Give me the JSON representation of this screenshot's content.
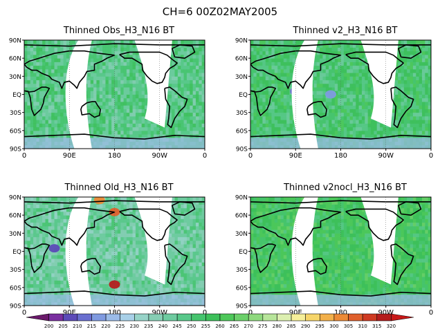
{
  "figure": {
    "title": "CH=6    00Z02MAY2005"
  },
  "chart_data": [
    {
      "type": "heatmap",
      "title": "Thinned Obs_H3_N16 BT",
      "x_ticks": [
        "0",
        "90E",
        "180",
        "90W",
        "0"
      ],
      "y_ticks": [
        "90N",
        "60N",
        "30N",
        "EQ",
        "30S",
        "60S",
        "90S"
      ],
      "xlim": [
        0,
        360
      ],
      "ylim": [
        -90,
        90
      ],
      "swath_gap_lon": [
        80,
        200
      ],
      "dominant_value": 250,
      "anomalies": []
    },
    {
      "type": "heatmap",
      "title": "Thinned v2_H3_N16 BT",
      "x_ticks": [
        "0",
        "90E",
        "180",
        "90W",
        "0"
      ],
      "y_ticks": [
        "90N",
        "60N",
        "30N",
        "EQ",
        "30S",
        "60S",
        "90S"
      ],
      "xlim": [
        0,
        360
      ],
      "ylim": [
        -90,
        90
      ],
      "swath_gap_lon": [
        80,
        200
      ],
      "dominant_value": 255,
      "anomalies": [
        {
          "lon": 90,
          "lat": 5,
          "value": 215
        },
        {
          "lon": 160,
          "lat": 0,
          "value": 220
        }
      ]
    },
    {
      "type": "heatmap",
      "title": "Thinned Old_H3_N16 BT",
      "x_ticks": [
        "0",
        "90E",
        "180",
        "90W",
        "0"
      ],
      "y_ticks": [
        "90N",
        "60N",
        "30N",
        "EQ",
        "30S",
        "60S",
        "90S"
      ],
      "xlim": [
        0,
        360
      ],
      "ylim": [
        -90,
        90
      ],
      "swath_gap_lon": [
        80,
        200
      ],
      "dominant_value": 245,
      "anomalies": [
        {
          "lon": 60,
          "lat": 5,
          "value": 210
        },
        {
          "lon": 180,
          "lat": -55,
          "value": 320
        },
        {
          "lon": 180,
          "lat": 65,
          "value": 310
        },
        {
          "lon": 150,
          "lat": 85,
          "value": 305
        }
      ]
    },
    {
      "type": "heatmap",
      "title": "Thinned v2nocl_H3_N16 BT",
      "x_ticks": [
        "0",
        "90E",
        "180",
        "90W",
        "0"
      ],
      "y_ticks": [
        "90N",
        "60N",
        "30N",
        "EQ",
        "30S",
        "60S",
        "90S"
      ],
      "xlim": [
        0,
        360
      ],
      "ylim": [
        -90,
        90
      ],
      "swath_gap_lon": [
        80,
        200
      ],
      "dominant_value": 260,
      "anomalies": []
    }
  ],
  "colorbar": {
    "labels": [
      "200",
      "205",
      "210",
      "215",
      "220",
      "225",
      "230",
      "235",
      "240",
      "245",
      "250",
      "255",
      "260",
      "265",
      "270",
      "275",
      "280",
      "285",
      "290",
      "295",
      "300",
      "305",
      "310",
      "315",
      "320"
    ],
    "colors": [
      "#6b1a6b",
      "#7a2fa0",
      "#5c4ab8",
      "#6a6fd0",
      "#7f9ae0",
      "#9bbbe8",
      "#a8d0e8",
      "#97d3c8",
      "#86ceb4",
      "#6ecba0",
      "#58c88a",
      "#46c46e",
      "#3dc05a",
      "#4ec85a",
      "#6bd06a",
      "#8fd97e",
      "#b7e59a",
      "#dcefb0",
      "#f6ef9a",
      "#f6d56a",
      "#f2b04a",
      "#ec8a36",
      "#e0602c",
      "#cf3a22",
      "#b51d1d",
      "#c81818"
    ]
  }
}
